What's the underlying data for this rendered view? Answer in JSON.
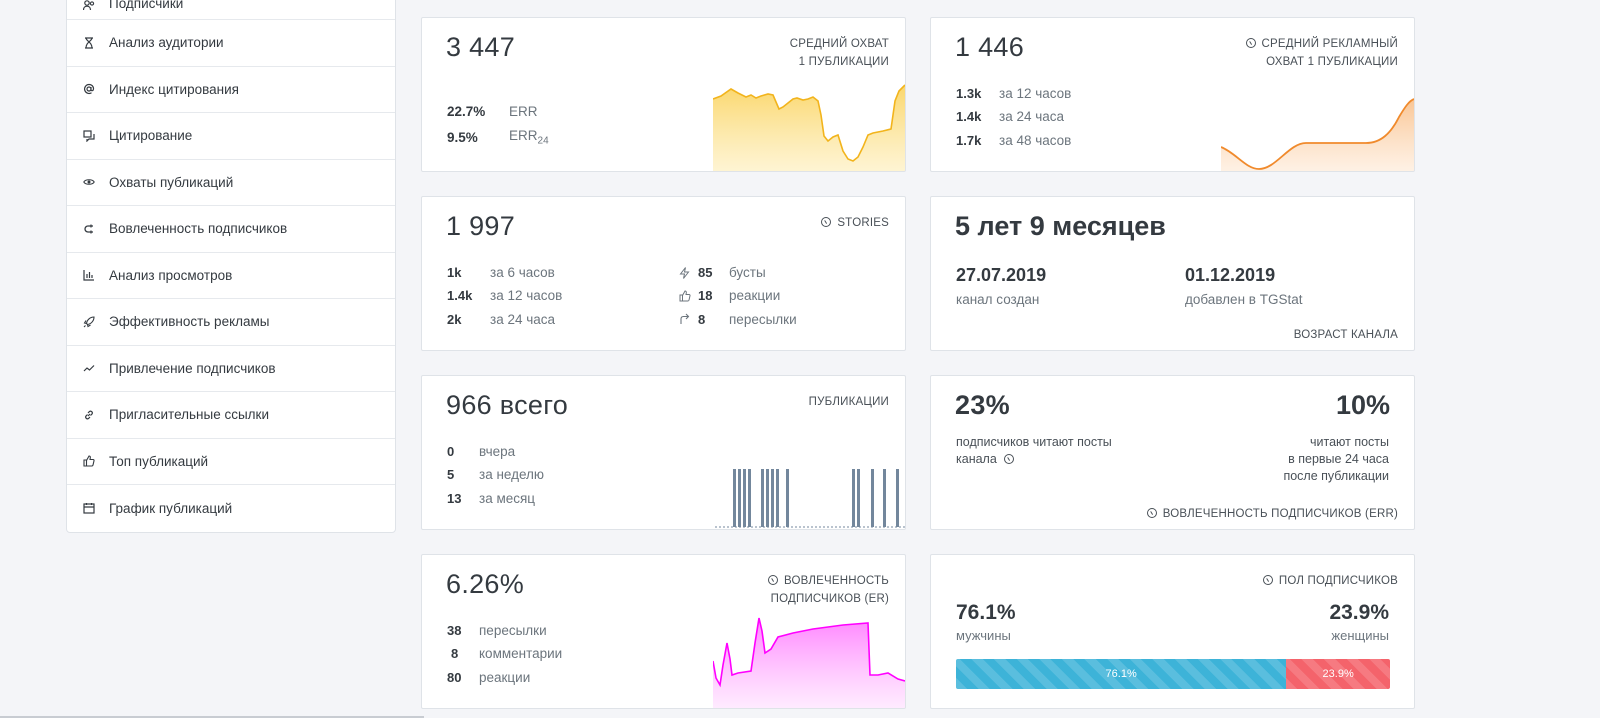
{
  "sidebar": {
    "items": [
      {
        "label": "Подписчики",
        "icon": "subscribers-icon"
      },
      {
        "label": "Анализ аудитории",
        "icon": "hourglass-icon"
      },
      {
        "label": "Индекс цитирования",
        "icon": "at-sign-icon"
      },
      {
        "label": "Цитирование",
        "icon": "quote-bubble-icon"
      },
      {
        "label": "Охваты публикаций",
        "icon": "eye-icon"
      },
      {
        "label": "Вовлеченность подписчиков",
        "icon": "magnet-icon"
      },
      {
        "label": "Анализ просмотров",
        "icon": "bar-chart-icon"
      },
      {
        "label": "Эффективность рекламы",
        "icon": "rocket-icon"
      },
      {
        "label": "Привлечение подписчиков",
        "icon": "trend-icon"
      },
      {
        "label": "Пригласительные ссылки",
        "icon": "link-icon"
      },
      {
        "label": "Топ публикаций",
        "icon": "thumbs-up-icon"
      },
      {
        "label": "График публикаций",
        "icon": "calendar-icon"
      }
    ]
  },
  "reach": {
    "value": "3 447",
    "caption_line1": "СРЕДНИЙ ОХВАТ",
    "caption_line2": "1 ПУБЛИКАЦИИ",
    "err_value": "22.7%",
    "err_label": "ERR",
    "err24_value": "9.5%",
    "err24_label": "ERR",
    "err24_sub": "24",
    "accent": "#f7c332"
  },
  "ad_reach": {
    "value": "1 446",
    "caption_line1": "СРЕДНИЙ РЕКЛАМНЫЙ",
    "caption_line2": "ОХВАТ 1 ПУБЛИКАЦИИ",
    "rows": [
      {
        "value": "1.3k",
        "label": "за 12 часов"
      },
      {
        "value": "1.4k",
        "label": "за 24 часа"
      },
      {
        "value": "1.7k",
        "label": "за 48 часов"
      }
    ],
    "accent": "#f5963c"
  },
  "stories": {
    "value": "1 997",
    "caption": "STORIES",
    "left_rows": [
      {
        "value": "1k",
        "label": "за 6 часов"
      },
      {
        "value": "1.4k",
        "label": "за 12 часов"
      },
      {
        "value": "2k",
        "label": "за 24 часа"
      }
    ],
    "right_rows": [
      {
        "icon": "lightning-icon",
        "value": "85",
        "label": "бусты"
      },
      {
        "icon": "thumbs-up-icon",
        "value": "18",
        "label": "реакции"
      },
      {
        "icon": "forward-arrow-icon",
        "value": "8",
        "label": "пересылки"
      }
    ]
  },
  "age": {
    "value": "5 лет 9 месяцев",
    "created_date": "27.07.2019",
    "created_label": "канал создан",
    "added_date": "01.12.2019",
    "added_label": "добавлен в TGStat",
    "caption": "ВОЗРАСТ КАНАЛА"
  },
  "posts": {
    "value_num": "966",
    "value_word": "всего",
    "caption": "ПУБЛИКАЦИИ",
    "rows": [
      {
        "value": "0",
        "label": "вчера"
      },
      {
        "value": "5",
        "label": "за неделю"
      },
      {
        "value": "13",
        "label": "за месяц"
      }
    ],
    "bar_color": "#73879c"
  },
  "err_card": {
    "left_value": "23%",
    "left_text1": "подписчиков читают посты",
    "left_text2": "канала",
    "right_value": "10%",
    "right_text1": "читают посты",
    "right_text2": "в первые 24 часа",
    "right_text3": "после публикации",
    "caption": "ВОВЛЕЧЕННОСТЬ ПОДПИСЧИКОВ (ERR)"
  },
  "er_card": {
    "value": "6.26%",
    "caption_line1": "ВОВЛЕЧЕННОСТЬ",
    "caption_line2": "ПОДПИСЧИКОВ (ER)",
    "rows": [
      {
        "value": "38",
        "label": "пересылки"
      },
      {
        "value": "8",
        "label": "комментарии"
      },
      {
        "value": "80",
        "label": "реакции"
      }
    ],
    "accent": "#ff00ff"
  },
  "gender": {
    "caption": "ПОЛ ПОДПИСЧИКОВ",
    "male_value": "76.1%",
    "male_label": "мужчины",
    "female_value": "23.9%",
    "female_label": "женщины",
    "male_bar_label": "76.1%",
    "female_bar_label": "23.9%",
    "male_fraction": 0.761,
    "male_color": "#3db3d8",
    "female_color": "#f4636b"
  }
}
